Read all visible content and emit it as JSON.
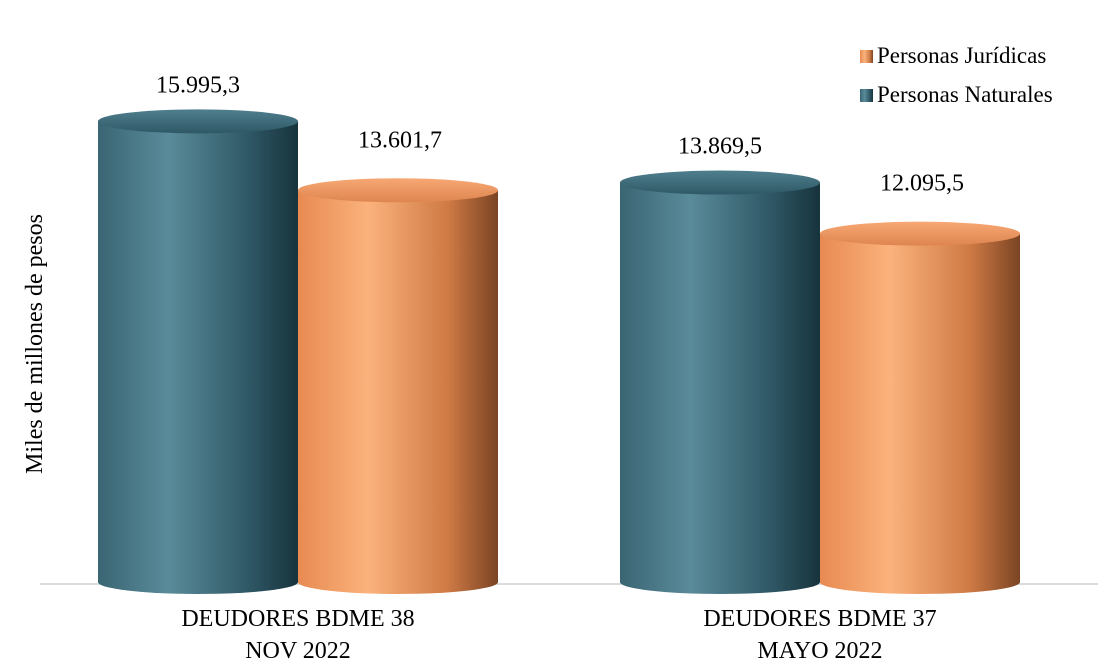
{
  "chart_data": {
    "type": "bar",
    "categories": [
      [
        "DEUDORES BDME 38",
        "NOV 2022"
      ],
      [
        "DEUDORES BDME 37",
        "MAYO 2022"
      ]
    ],
    "series": [
      {
        "name": "Personas Naturales",
        "values": [
          15995.3,
          13869.5
        ],
        "labels": [
          "15.995,3",
          "13.869,5"
        ],
        "color": "#3f6f7e"
      },
      {
        "name": "Personas Jurídicas",
        "values": [
          13601.7,
          12095.5
        ],
        "labels": [
          "13.601,7",
          "12.095,5"
        ],
        "color": "#f49a5f"
      }
    ],
    "ylabel": "Miles de millones de pesos",
    "xlabel": "",
    "ylim": [
      0,
      17500
    ],
    "grid": false,
    "legend_position": "top-right",
    "legend_order": [
      "Personas Jurídicas",
      "Personas Naturales"
    ],
    "style": "3d-cylinder"
  }
}
